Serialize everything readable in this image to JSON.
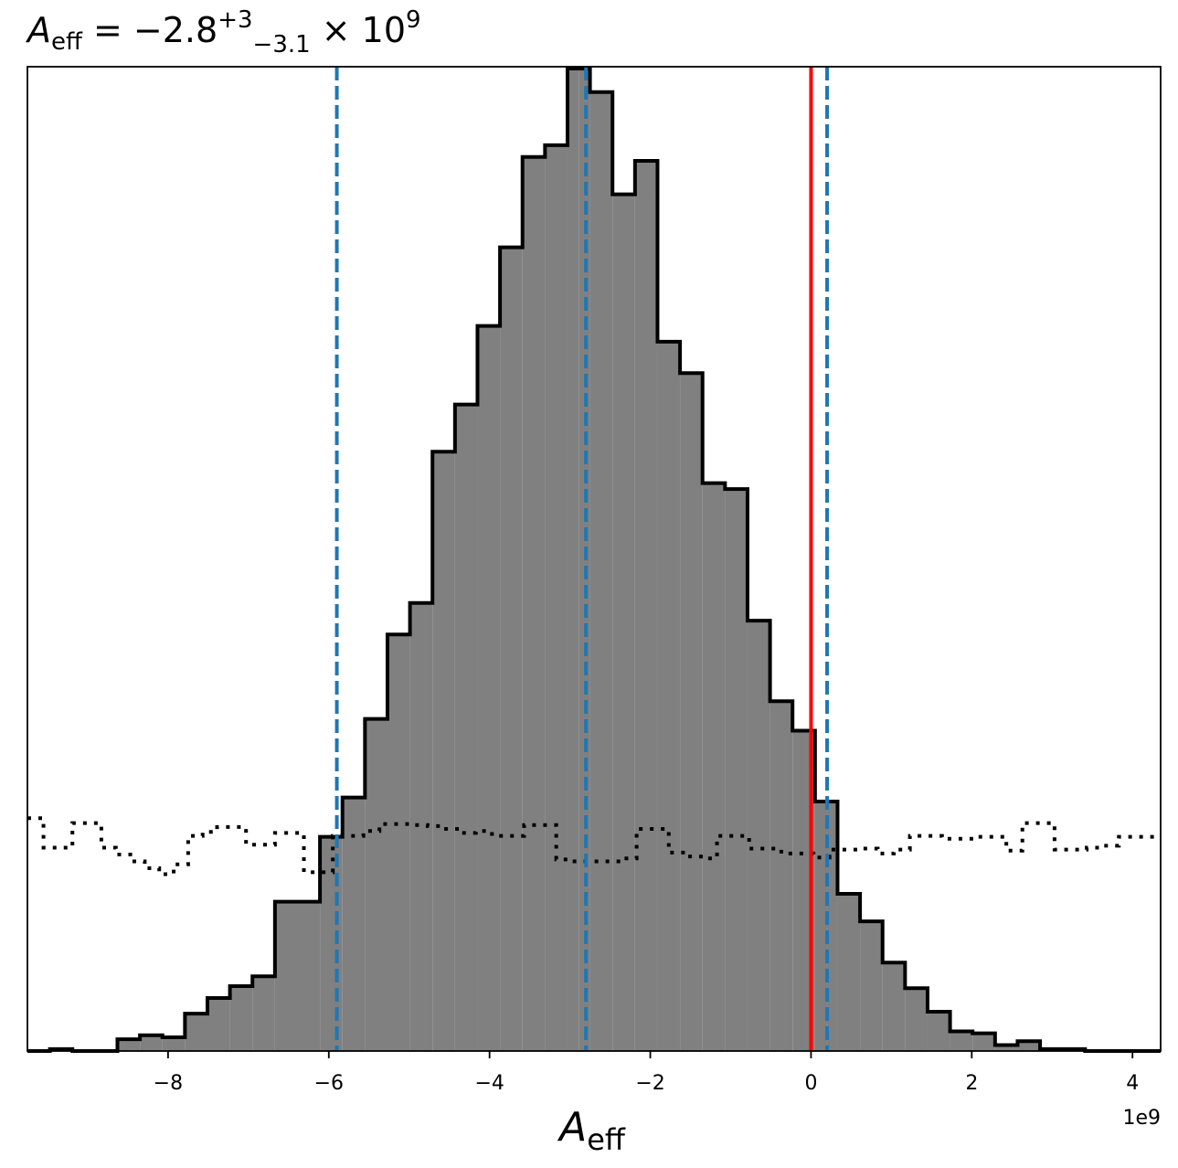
{
  "chart_data": {
    "type": "histogram",
    "title": {
      "symbol": "A",
      "symbol_sub": "eff",
      "equals": " = −2.8",
      "sup": "+3",
      "sub": "−3.1",
      "times": " × 10",
      "exp": "9"
    },
    "xlabel": {
      "symbol": "A",
      "symbol_sub": "eff"
    },
    "x_offset_label": "1e9",
    "xlim": [
      -9.75,
      4.35
    ],
    "ylim": [
      0,
      1.0
    ],
    "x_ticks": [
      -8,
      -6,
      -4,
      -2,
      0,
      2,
      4
    ],
    "x_tick_labels": [
      "−8",
      "−6",
      "−4",
      "−2",
      "0",
      "2",
      "4"
    ],
    "y_ticks_shown": false,
    "grid": false,
    "posterior": {
      "style": "filled-step",
      "fill_color": "#808080",
      "edge_color": "#000000",
      "bin_edges": [
        -9.75,
        -9.47,
        -9.19,
        -8.91,
        -8.63,
        -8.35,
        -8.07,
        -7.79,
        -7.51,
        -7.23,
        -6.95,
        -6.67,
        -6.39,
        -6.11,
        -5.83,
        -5.55,
        -5.27,
        -4.99,
        -4.71,
        -4.43,
        -4.15,
        -3.87,
        -3.59,
        -3.31,
        -3.03,
        -2.89,
        -2.75,
        -2.47,
        -2.19,
        -1.91,
        -1.63,
        -1.35,
        -1.07,
        -0.79,
        -0.51,
        -0.23,
        0.05,
        0.33,
        0.61,
        0.89,
        1.17,
        1.45,
        1.73,
        2.01,
        2.29,
        2.57,
        2.85,
        3.13,
        3.41,
        3.69,
        3.97,
        4.35
      ],
      "values": [
        0.0,
        0.002,
        0.0,
        0.0,
        0.012,
        0.016,
        0.014,
        0.038,
        0.054,
        0.066,
        0.076,
        0.152,
        0.152,
        0.218,
        0.258,
        0.338,
        0.424,
        0.456,
        0.61,
        0.658,
        0.738,
        0.818,
        0.91,
        0.922,
        1.0,
        1.0,
        0.976,
        0.872,
        0.906,
        0.722,
        0.69,
        0.578,
        0.572,
        0.438,
        0.356,
        0.326,
        0.254,
        0.16,
        0.132,
        0.09,
        0.064,
        0.04,
        0.02,
        0.018,
        0.006,
        0.01,
        0.002,
        0.002,
        0.0,
        0.0,
        0.0
      ]
    },
    "prior": {
      "style": "dotted-step",
      "color": "#000000",
      "bin_edges": [
        -9.75,
        -9.55,
        -9.37,
        -9.19,
        -9.01,
        -8.83,
        -8.65,
        -8.47,
        -8.29,
        -8.11,
        -7.93,
        -7.75,
        -7.57,
        -7.39,
        -7.21,
        -7.03,
        -6.85,
        -6.67,
        -6.49,
        -6.31,
        -6.13,
        -5.95,
        -5.77,
        -5.57,
        -5.37,
        -5.17,
        -4.97,
        -4.77,
        -4.57,
        -4.37,
        -4.17,
        -3.97,
        -3.77,
        -3.57,
        -3.37,
        -3.17,
        -2.97,
        -2.77,
        -2.57,
        -2.37,
        -2.17,
        -1.97,
        -1.77,
        -1.57,
        -1.37,
        -1.17,
        -0.97,
        -0.77,
        -0.57,
        -0.37,
        -0.17,
        0.03,
        0.23,
        0.43,
        0.63,
        0.83,
        1.03,
        1.23,
        1.43,
        1.63,
        1.83,
        2.03,
        2.23,
        2.43,
        2.63,
        2.83,
        3.03,
        3.23,
        3.43,
        3.63,
        3.83,
        4.03,
        4.35
      ],
      "values": [
        0.237,
        0.207,
        0.207,
        0.232,
        0.232,
        0.207,
        0.2,
        0.193,
        0.186,
        0.18,
        0.19,
        0.219,
        0.223,
        0.228,
        0.228,
        0.21,
        0.21,
        0.222,
        0.222,
        0.182,
        0.182,
        0.219,
        0.219,
        0.224,
        0.231,
        0.231,
        0.23,
        0.229,
        0.226,
        0.222,
        0.224,
        0.219,
        0.219,
        0.23,
        0.23,
        0.195,
        0.193,
        0.193,
        0.193,
        0.196,
        0.226,
        0.226,
        0.202,
        0.198,
        0.196,
        0.219,
        0.219,
        0.206,
        0.206,
        0.201,
        0.201,
        0.197,
        0.205,
        0.205,
        0.206,
        0.201,
        0.205,
        0.219,
        0.219,
        0.216,
        0.216,
        0.218,
        0.218,
        0.204,
        0.232,
        0.232,
        0.205,
        0.205,
        0.207,
        0.209,
        0.218,
        0.218
      ]
    },
    "vlines": [
      {
        "name": "lower-bound",
        "x": -5.9,
        "color": "#1f77b4",
        "style": "dashed"
      },
      {
        "name": "median",
        "x": -2.8,
        "color": "#1f77b4",
        "style": "dashed"
      },
      {
        "name": "upper-bound",
        "x": 0.2,
        "color": "#1f77b4",
        "style": "dashed"
      },
      {
        "name": "true-value",
        "x": 0.0,
        "color": "#ff0000",
        "style": "solid"
      }
    ]
  }
}
